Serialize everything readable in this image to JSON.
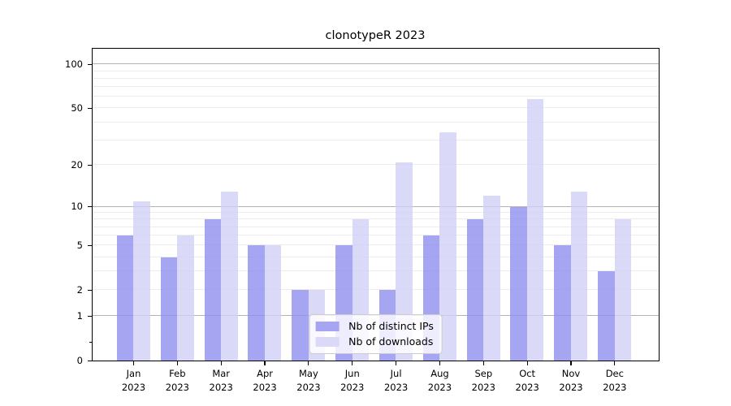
{
  "chart_data": {
    "type": "bar",
    "title": "clonotypeR 2023",
    "categories": [
      "Jan 2023",
      "Feb 2023",
      "Mar 2023",
      "Apr 2023",
      "May 2023",
      "Jun 2023",
      "Jul 2023",
      "Aug 2023",
      "Sep 2023",
      "Oct 2023",
      "Nov 2023",
      "Dec 2023"
    ],
    "series": [
      {
        "name": "Nb of distinct IPs",
        "color": "#a5a5f2",
        "values": [
          6,
          4,
          8,
          5,
          2,
          5,
          2,
          6,
          8,
          10,
          5,
          3
        ]
      },
      {
        "name": "Nb of downloads",
        "color": "#dadaf8",
        "values": [
          11,
          6,
          13,
          5,
          2,
          8,
          21,
          34,
          12,
          58,
          13,
          8
        ]
      }
    ],
    "xlabel": "",
    "ylabel": "",
    "yscale": "log1p",
    "ylim": [
      0,
      128
    ],
    "yticks": [
      0,
      1,
      2,
      5,
      10,
      20,
      50,
      100
    ],
    "ytick_labels": [
      "0",
      "1",
      "2",
      "5",
      "10",
      "20",
      "50",
      "100"
    ],
    "major_gridlines": [
      1,
      10,
      100
    ],
    "minor_gridlines": [
      2,
      3,
      4,
      5,
      6,
      7,
      8,
      9,
      20,
      30,
      40,
      50,
      60,
      70,
      80,
      90
    ],
    "y_minor_axis_ticks": [
      0.33
    ],
    "grid": true,
    "legend_position": "lower center",
    "colors": {
      "background": "#ffffff",
      "axis": "#000000",
      "major_grid": "#b3b3b3",
      "minor_grid": "#ececec",
      "legend_border": "#cccccc",
      "text": "#000000"
    }
  }
}
